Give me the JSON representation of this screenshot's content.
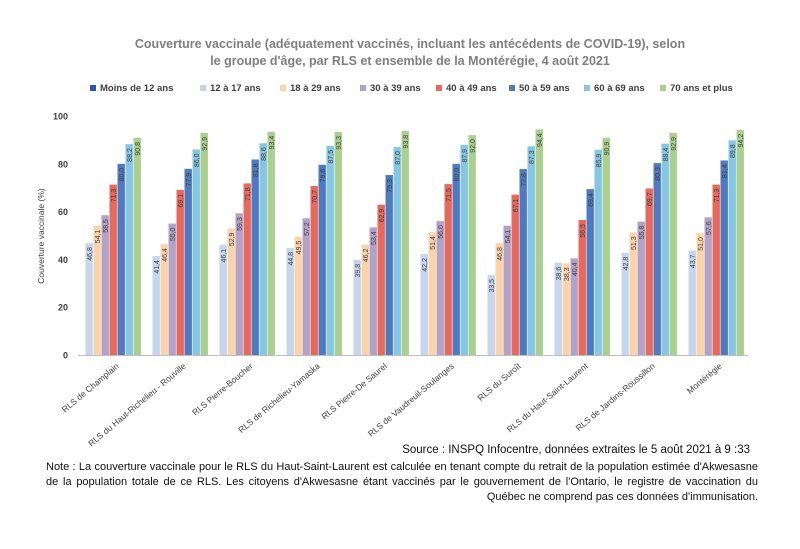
{
  "chart_data": {
    "type": "bar",
    "title": "Couverture vaccinale (adéquatement vaccinés, incluant les antécédents de COVID-19), selon le groupe d'âge, par RLS et ensemble de la Montérégie, 4 août 2021",
    "title_lines": [
      "Couverture vaccinale (adéquatement vaccinés, incluant les antécédents de COVID-19), selon",
      "le groupe d'âge, par RLS et ensemble de la Montérégie, 4 août 2021"
    ],
    "ylabel": "Couverture vaccinale (%)",
    "xlabel": "",
    "ylim": [
      0,
      100
    ],
    "yticks": [
      0,
      20,
      40,
      60,
      80,
      100
    ],
    "grid": false,
    "legend_position": "top",
    "categories": [
      "RLS de Champlain",
      "RLS du Haut-Richelieu - Rouville",
      "RLS Pierre-Boucher",
      "RLS de Richelieu-Yamaska",
      "RLS Pierre-De Saurel",
      "RLS de Vaudreuil-Soulanges",
      "RLS du Suroît",
      "RLS du Haut-Saint-Laurent",
      "RLS de Jardins-Roussillon",
      "Montérégie"
    ],
    "series": [
      {
        "name": "Moins de 12 ans",
        "color": "#2e5a9c",
        "values": [
          null,
          null,
          null,
          null,
          null,
          null,
          null,
          null,
          null,
          null
        ]
      },
      {
        "name": "12 à 17 ans",
        "color": "#c5d6ee",
        "values": [
          46.8,
          41.4,
          46.1,
          44.8,
          39.8,
          42.2,
          33.5,
          38.6,
          42.8,
          43.7
        ]
      },
      {
        "name": "18 à 29 ans",
        "color": "#fbd3ab",
        "values": [
          54.1,
          46.4,
          52.9,
          49.5,
          46.2,
          51.4,
          46.8,
          38.3,
          51.3,
          51.0
        ]
      },
      {
        "name": "30 à 39 ans",
        "color": "#b3a2c8",
        "values": [
          58.5,
          55.0,
          59.3,
          57.2,
          53.4,
          56.0,
          54.1,
          40.4,
          55.8,
          57.6
        ]
      },
      {
        "name": "40 à 49 ans",
        "color": "#e8685c",
        "values": [
          71.3,
          69.1,
          71.8,
          70.7,
          62.9,
          71.5,
          67.1,
          56.5,
          69.7,
          71.3
        ]
      },
      {
        "name": "50 à 59 ans",
        "color": "#4f7ac0",
        "values": [
          80.0,
          77.9,
          81.8,
          79.6,
          75.3,
          80.0,
          77.8,
          69.4,
          80.3,
          81.4
        ]
      },
      {
        "name": "60 à 69 ans",
        "color": "#85c6e4",
        "values": [
          88.2,
          86.0,
          88.6,
          87.5,
          87.0,
          87.9,
          87.3,
          85.9,
          88.4,
          89.8
        ]
      },
      {
        "name": "70 ans et plus",
        "color": "#a9d08e",
        "values": [
          90.8,
          92.9,
          93.4,
          93.3,
          93.8,
          92.0,
          94.4,
          90.9,
          92.9,
          94.2
        ]
      }
    ]
  },
  "source": "Source : INSPQ Infocentre, données extraites le 5 août 2021 à 9 :33",
  "note": "Note : La couverture vaccinale pour le RLS du Haut-Saint-Laurent est calculée en tenant compte du retrait de la population estimée d'Akwesasne de la population totale de ce RLS. Les citoyens d'Akwesasne étant vaccinés par le gouvernement de l'Ontario, le registre de vaccination du Québec ne comprend pas ces données d'immunisation."
}
